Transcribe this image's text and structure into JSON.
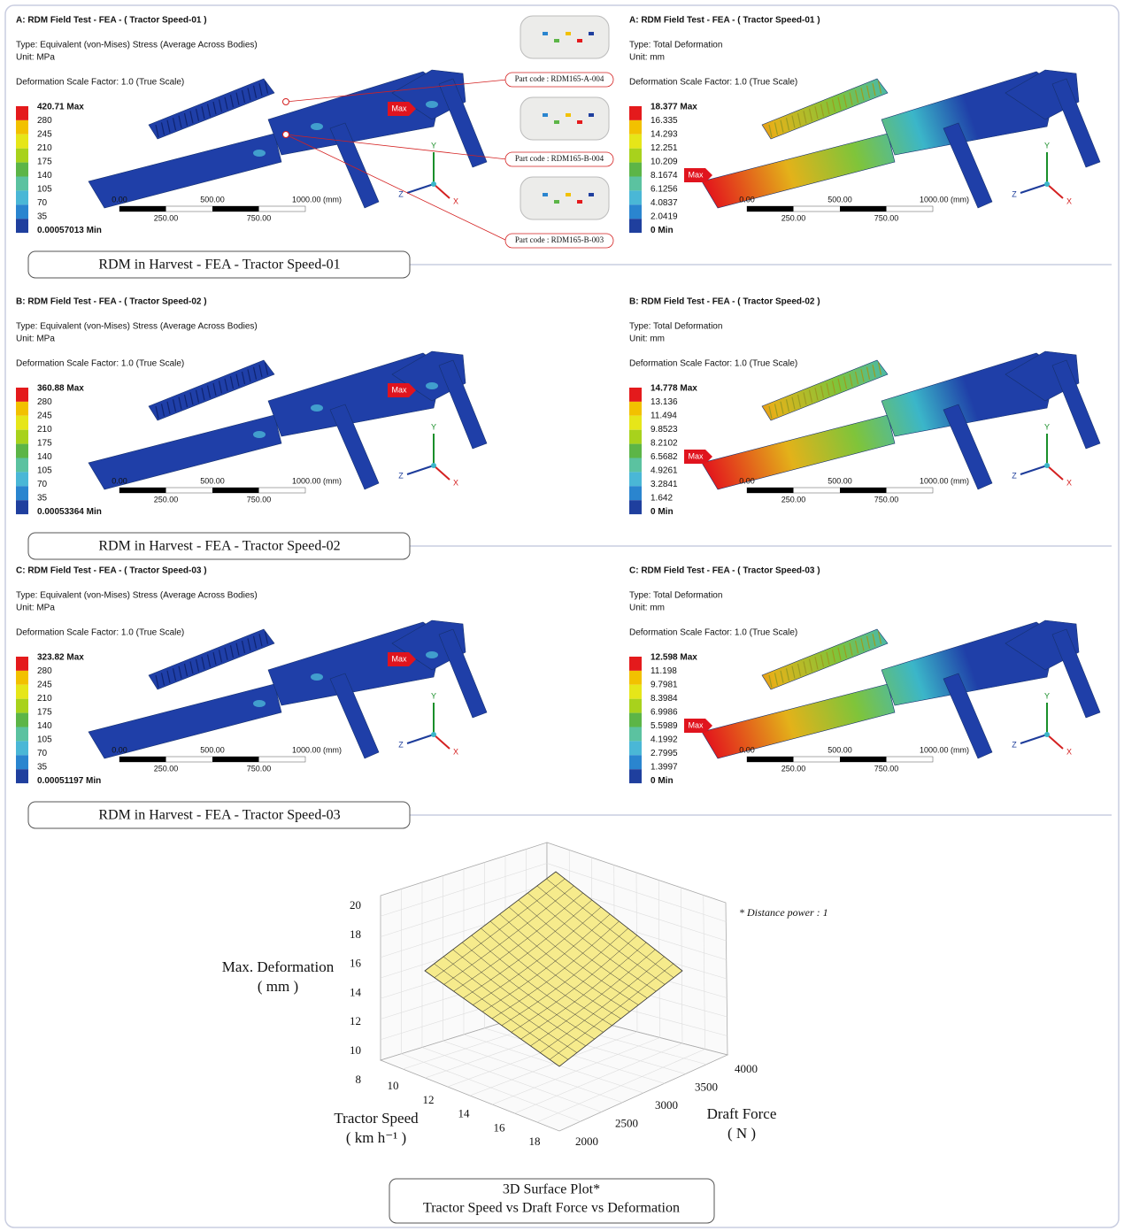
{
  "panels": [
    {
      "stress": {
        "title": "A: RDM Field Test -  FEA - ( Tractor Speed-01 )",
        "type": "Type: Equivalent (von-Mises) Stress (Average Across Bodies)",
        "unit": "Unit: MPa",
        "scale_factor": "Deformation Scale Factor: 1.0 (True Scale)",
        "legend": [
          "420.71 Max",
          "280",
          "245",
          "210",
          "175",
          "140",
          "105",
          "70",
          "35",
          "0.00057013 Min"
        ],
        "scale_bar": [
          "0.00",
          "500.00",
          "1000.00 (mm)",
          "250.00",
          "750.00"
        ],
        "max_tag": "Max",
        "axes": [
          "Y",
          "Z",
          "X"
        ]
      },
      "deformation": {
        "title": "A: RDM Field Test -  FEA - ( Tractor Speed-01 )",
        "type": "Type: Total Deformation",
        "unit": "Unit: mm",
        "scale_factor": "Deformation Scale Factor: 1.0 (True Scale)",
        "legend": [
          "18.377 Max",
          "16.335",
          "14.293",
          "12.251",
          "10.209",
          "8.1674",
          "6.1256",
          "4.0837",
          "2.0419",
          "0 Min"
        ],
        "scale_bar": [
          "0.00",
          "500.00",
          "1000.00 (mm)",
          "250.00",
          "750.00"
        ],
        "max_tag": "Max",
        "axes": [
          "Y",
          "Z",
          "X"
        ]
      },
      "caption": "RDM in Harvest - FEA - Tractor Speed-01"
    },
    {
      "stress": {
        "title": "B: RDM Field Test -  FEA - ( Tractor Speed-02 )",
        "type": "Type: Equivalent (von-Mises) Stress (Average Across Bodies)",
        "unit": "Unit: MPa",
        "scale_factor": "Deformation Scale Factor: 1.0 (True Scale)",
        "legend": [
          "360.88 Max",
          "280",
          "245",
          "210",
          "175",
          "140",
          "105",
          "70",
          "35",
          "0.00053364 Min"
        ],
        "scale_bar": [
          "0.00",
          "500.00",
          "1000.00 (mm)",
          "250.00",
          "750.00"
        ],
        "max_tag": "Max",
        "axes": [
          "Y",
          "Z",
          "X"
        ]
      },
      "deformation": {
        "title": "B: RDM Field Test -  FEA - ( Tractor Speed-02 )",
        "type": "Type: Total Deformation",
        "unit": "Unit: mm",
        "scale_factor": "Deformation Scale Factor: 1.0 (True Scale)",
        "legend": [
          "14.778 Max",
          "13.136",
          "11.494",
          "9.8523",
          "8.2102",
          "6.5682",
          "4.9261",
          "3.2841",
          "1.642",
          "0 Min"
        ],
        "scale_bar": [
          "0.00",
          "500.00",
          "1000.00 (mm)",
          "250.00",
          "750.00"
        ],
        "max_tag": "Max",
        "axes": [
          "Y",
          "Z",
          "X"
        ]
      },
      "caption": "RDM in Harvest - FEA - Tractor Speed-02"
    },
    {
      "stress": {
        "title": "C: RDM Field Test -  FEA - ( Tractor Speed-03 )",
        "type": "Type: Equivalent (von-Mises) Stress (Average Across Bodies)",
        "unit": "Unit: MPa",
        "scale_factor": "Deformation Scale Factor: 1.0 (True Scale)",
        "legend": [
          "323.82 Max",
          "280",
          "245",
          "210",
          "175",
          "140",
          "105",
          "70",
          "35",
          "0.00051197 Min"
        ],
        "scale_bar": [
          "0.00",
          "500.00",
          "1000.00 (mm)",
          "250.00",
          "750.00"
        ],
        "max_tag": "Max",
        "axes": [
          "Y",
          "Z",
          "X"
        ]
      },
      "deformation": {
        "title": "C: RDM Field Test -  FEA - ( Tractor Speed-03 )",
        "type": "Type: Total Deformation",
        "unit": "Unit: mm",
        "scale_factor": "Deformation Scale Factor: 1.0 (True Scale)",
        "legend": [
          "12.598 Max",
          "11.198",
          "9.7981",
          "8.3984",
          "6.9986",
          "5.5989",
          "4.1992",
          "2.7995",
          "1.3997",
          "0 Min"
        ],
        "scale_bar": [
          "0.00",
          "500.00",
          "1000.00 (mm)",
          "250.00",
          "750.00"
        ],
        "max_tag": "Max",
        "axes": [
          "Y",
          "Z",
          "X"
        ]
      },
      "caption": "RDM in Harvest - FEA - Tractor Speed-03"
    }
  ],
  "part_codes": [
    "Part code : RDM165-A-004",
    "Part code : RDM165-B-004",
    "Part code : RDM165-B-003"
  ],
  "surface_plot": {
    "z_label": [
      "Max. Deformation",
      "( mm )"
    ],
    "x_label": [
      "Tractor Speed",
      "( km h⁻¹ )"
    ],
    "y_label": [
      "Draft Force",
      "( N )"
    ],
    "zticks": [
      8,
      10,
      12,
      14,
      16,
      18,
      20
    ],
    "xticks": [
      10,
      12,
      14,
      16,
      18
    ],
    "yticks": [
      2000,
      2500,
      3000,
      3500,
      4000
    ],
    "note": "* Distance power : 1",
    "caption": [
      "3D Surface Plot*",
      "Tractor Speed vs Draft Force vs Deformation"
    ]
  }
}
